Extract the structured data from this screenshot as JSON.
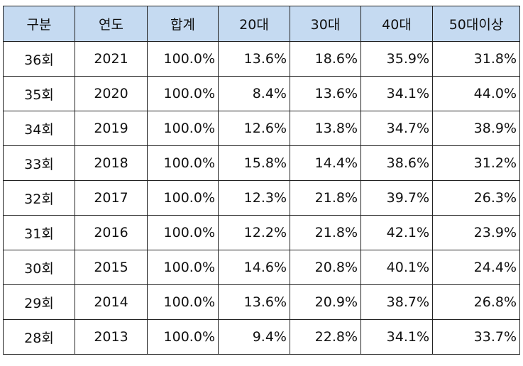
{
  "table": {
    "headers": [
      "구분",
      "연도",
      "합계",
      "20대",
      "30대",
      "40대",
      "50대이상"
    ],
    "rows": [
      [
        "36회",
        "2021",
        "100.0%",
        "13.6%",
        "18.6%",
        "35.9%",
        "31.8%"
      ],
      [
        "35회",
        "2020",
        "100.0%",
        "8.4%",
        "13.6%",
        "34.1%",
        "44.0%"
      ],
      [
        "34회",
        "2019",
        "100.0%",
        "12.6%",
        "13.8%",
        "34.7%",
        "38.9%"
      ],
      [
        "33회",
        "2018",
        "100.0%",
        "15.8%",
        "14.4%",
        "38.6%",
        "31.2%"
      ],
      [
        "32회",
        "2017",
        "100.0%",
        "12.3%",
        "21.8%",
        "39.7%",
        "26.3%"
      ],
      [
        "31회",
        "2016",
        "100.0%",
        "12.2%",
        "21.8%",
        "42.1%",
        "23.9%"
      ],
      [
        "30회",
        "2015",
        "100.0%",
        "14.6%",
        "20.8%",
        "40.1%",
        "24.4%"
      ],
      [
        "29회",
        "2014",
        "100.0%",
        "13.6%",
        "20.9%",
        "38.7%",
        "26.8%"
      ],
      [
        "28회",
        "2013",
        "100.0%",
        "9.4%",
        "22.8%",
        "34.1%",
        "33.7%"
      ]
    ]
  },
  "colors": {
    "header_bg": "#c5daf1",
    "border": "#222222",
    "text": "#111111"
  }
}
